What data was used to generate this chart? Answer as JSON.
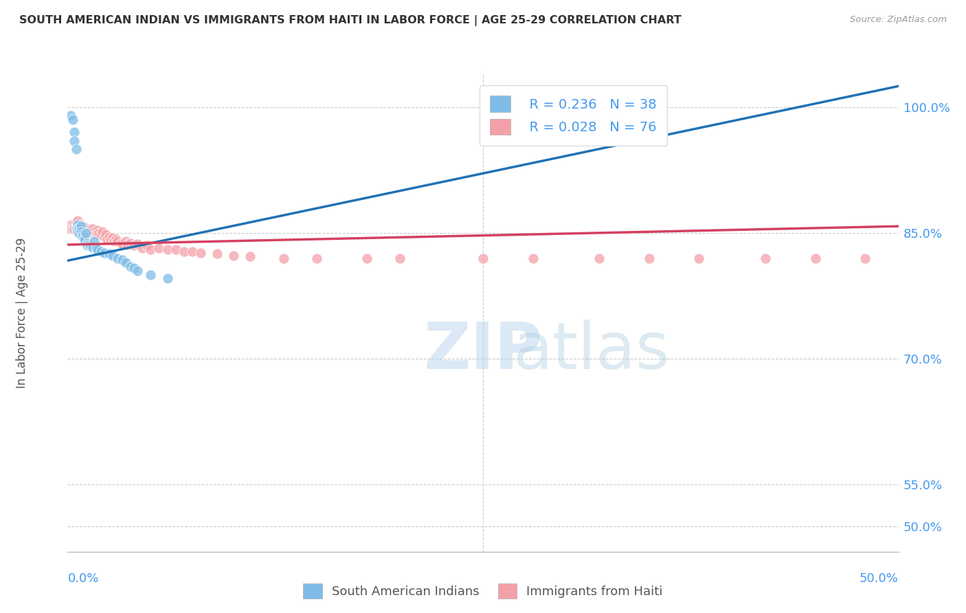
{
  "title": "SOUTH AMERICAN INDIAN VS IMMIGRANTS FROM HAITI IN LABOR FORCE | AGE 25-29 CORRELATION CHART",
  "source": "Source: ZipAtlas.com",
  "ylabel": "In Labor Force | Age 25-29",
  "ytick_vals": [
    0.5,
    0.55,
    0.7,
    0.85,
    1.0
  ],
  "ytick_labels": [
    "50.0%",
    "55.0%",
    "70.0%",
    "85.0%",
    "100.0%"
  ],
  "xmin": 0.0,
  "xmax": 0.5,
  "ymin": 0.47,
  "ymax": 1.04,
  "legend_r_blue": "R = 0.236",
  "legend_n_blue": "N = 38",
  "legend_r_pink": "R = 0.028",
  "legend_n_pink": "N = 76",
  "legend_label_blue": "South American Indians",
  "legend_label_pink": "Immigrants from Haiti",
  "watermark_zip": "ZIP",
  "watermark_atlas": "atlas",
  "blue_color": "#7fbde8",
  "pink_color": "#f4a0a8",
  "trend_blue": "#2171b5",
  "trend_pink": "#d44060",
  "blue_x": [
    0.002,
    0.003,
    0.004,
    0.004,
    0.005,
    0.005,
    0.006,
    0.006,
    0.006,
    0.007,
    0.007,
    0.008,
    0.008,
    0.009,
    0.009,
    0.01,
    0.01,
    0.011,
    0.012,
    0.012,
    0.013,
    0.014,
    0.015,
    0.016,
    0.017,
    0.018,
    0.02,
    0.022,
    0.025,
    0.027,
    0.03,
    0.033,
    0.035,
    0.038,
    0.04,
    0.042,
    0.05,
    0.06
  ],
  "blue_y": [
    0.99,
    0.985,
    0.97,
    0.96,
    0.95,
    0.855,
    0.86,
    0.855,
    0.852,
    0.855,
    0.85,
    0.858,
    0.852,
    0.848,
    0.846,
    0.845,
    0.842,
    0.85,
    0.838,
    0.835,
    0.836,
    0.834,
    0.833,
    0.84,
    0.832,
    0.83,
    0.828,
    0.826,
    0.825,
    0.823,
    0.82,
    0.818,
    0.815,
    0.81,
    0.808,
    0.805,
    0.8,
    0.796
  ],
  "pink_x": [
    0.001,
    0.002,
    0.002,
    0.003,
    0.003,
    0.004,
    0.004,
    0.005,
    0.005,
    0.006,
    0.006,
    0.006,
    0.007,
    0.007,
    0.008,
    0.008,
    0.009,
    0.009,
    0.01,
    0.01,
    0.011,
    0.011,
    0.012,
    0.012,
    0.013,
    0.014,
    0.014,
    0.015,
    0.015,
    0.016,
    0.017,
    0.018,
    0.018,
    0.019,
    0.02,
    0.021,
    0.022,
    0.023,
    0.024,
    0.025,
    0.026,
    0.027,
    0.028,
    0.029,
    0.03,
    0.032,
    0.033,
    0.035,
    0.036,
    0.038,
    0.04,
    0.042,
    0.045,
    0.048,
    0.05,
    0.055,
    0.06,
    0.065,
    0.07,
    0.075,
    0.08,
    0.09,
    0.1,
    0.11,
    0.13,
    0.15,
    0.18,
    0.2,
    0.25,
    0.28,
    0.32,
    0.35,
    0.38,
    0.42,
    0.45,
    0.48
  ],
  "pink_y": [
    0.855,
    0.86,
    0.855,
    0.86,
    0.855,
    0.858,
    0.855,
    0.862,
    0.857,
    0.865,
    0.86,
    0.855,
    0.858,
    0.855,
    0.86,
    0.856,
    0.858,
    0.854,
    0.857,
    0.853,
    0.856,
    0.853,
    0.855,
    0.852,
    0.853,
    0.855,
    0.852,
    0.855,
    0.849,
    0.852,
    0.85,
    0.853,
    0.848,
    0.85,
    0.848,
    0.852,
    0.845,
    0.848,
    0.843,
    0.845,
    0.842,
    0.844,
    0.84,
    0.843,
    0.84,
    0.838,
    0.837,
    0.84,
    0.836,
    0.838,
    0.835,
    0.837,
    0.832,
    0.835,
    0.83,
    0.832,
    0.83,
    0.83,
    0.828,
    0.828,
    0.826,
    0.825,
    0.823,
    0.822,
    0.82,
    0.82,
    0.82,
    0.82,
    0.82,
    0.82,
    0.82,
    0.82,
    0.82,
    0.82,
    0.82,
    0.82
  ]
}
